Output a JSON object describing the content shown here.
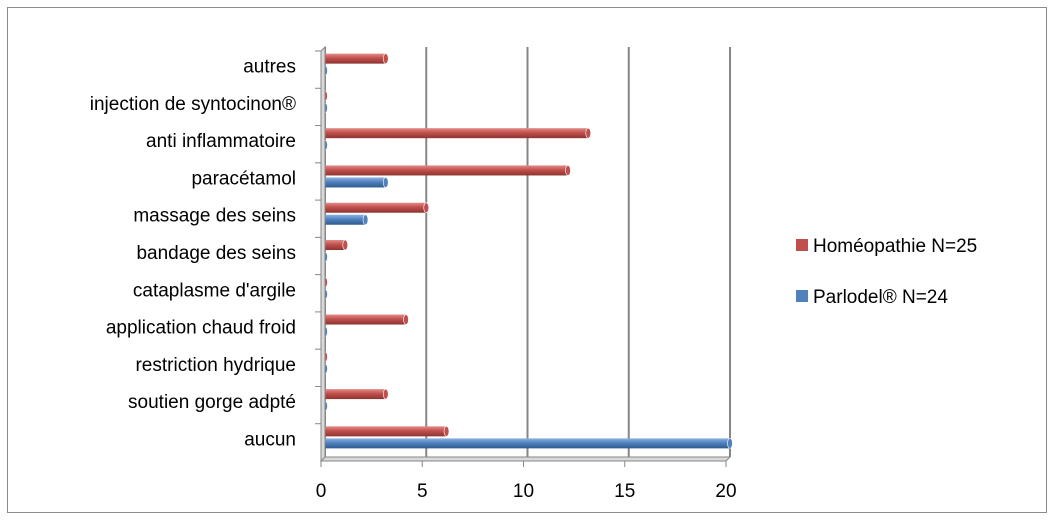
{
  "chart_data": {
    "type": "bar",
    "orientation": "horizontal",
    "categories": [
      "aucun",
      "soutien gorge adpté",
      "restriction hydrique",
      "application chaud froid",
      "cataplasme d'argile",
      "bandage des seins",
      "massage des seins",
      "paracétamol",
      "anti inflammatoire",
      "injection de syntocinon®",
      "autres"
    ],
    "series": [
      {
        "name": "Homéopathie N=25",
        "color": "#c0504d",
        "values": [
          6,
          3,
          0,
          4,
          0,
          1,
          5,
          12,
          13,
          0,
          3
        ]
      },
      {
        "name": "Parlodel® N=24",
        "color": "#4f81bd",
        "values": [
          20,
          0,
          0,
          0,
          0,
          0,
          2,
          3,
          0,
          0,
          0
        ]
      }
    ],
    "xlim": [
      0,
      20
    ],
    "xticks": [
      "0",
      "5",
      "10",
      "15",
      "20"
    ],
    "grid": true,
    "legend_position": "right",
    "legend_order": [
      "Homéopathie N=25",
      "Parlodel® N=24"
    ]
  }
}
